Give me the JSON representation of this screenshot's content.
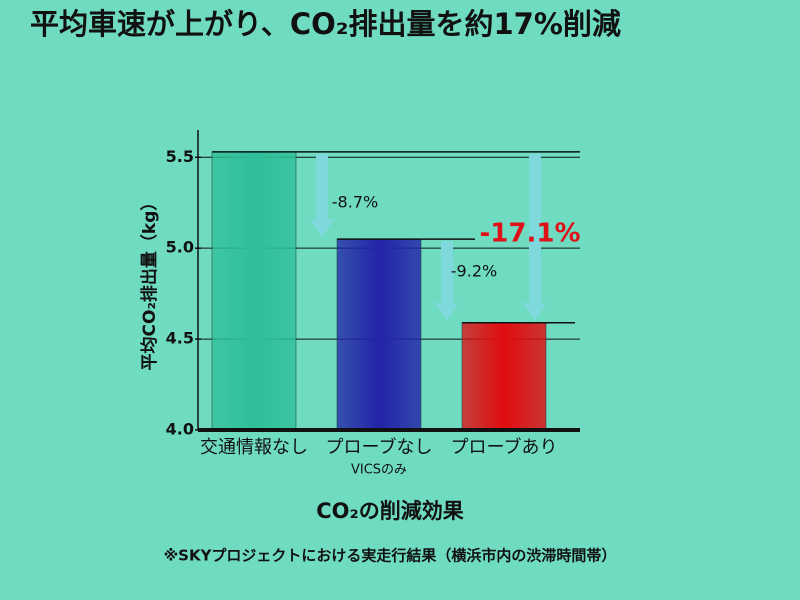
{
  "chart_data": {
    "type": "bar",
    "title": "平均車速が上がり、CO₂排出量を約17%削減",
    "y_label": "平均CO₂排出量（kg）",
    "x_label": "CO₂の削減効果",
    "categories": [
      "交通情報なし",
      "プローブなし",
      "プローブあり"
    ],
    "sublabels": [
      null,
      "VICSのみ",
      null
    ],
    "values": [
      5.53,
      5.05,
      4.59
    ],
    "colors": [
      "#2fbf9a",
      "#2323a8",
      "#e00c10"
    ],
    "ylim": [
      4.0,
      5.65
    ],
    "yticks": [
      {
        "value": 4.0,
        "label": "4.0"
      },
      4.5,
      {
        "value": 5.0,
        "label": "5.0"
      },
      5.5
    ],
    "grid": true,
    "annotations": [
      "-8.7%",
      "-9.2%",
      "-17.1%"
    ],
    "footnote": "※SKYプロジェクトにおける実走行結果（横浜市内の渋滞時間帯）"
  }
}
